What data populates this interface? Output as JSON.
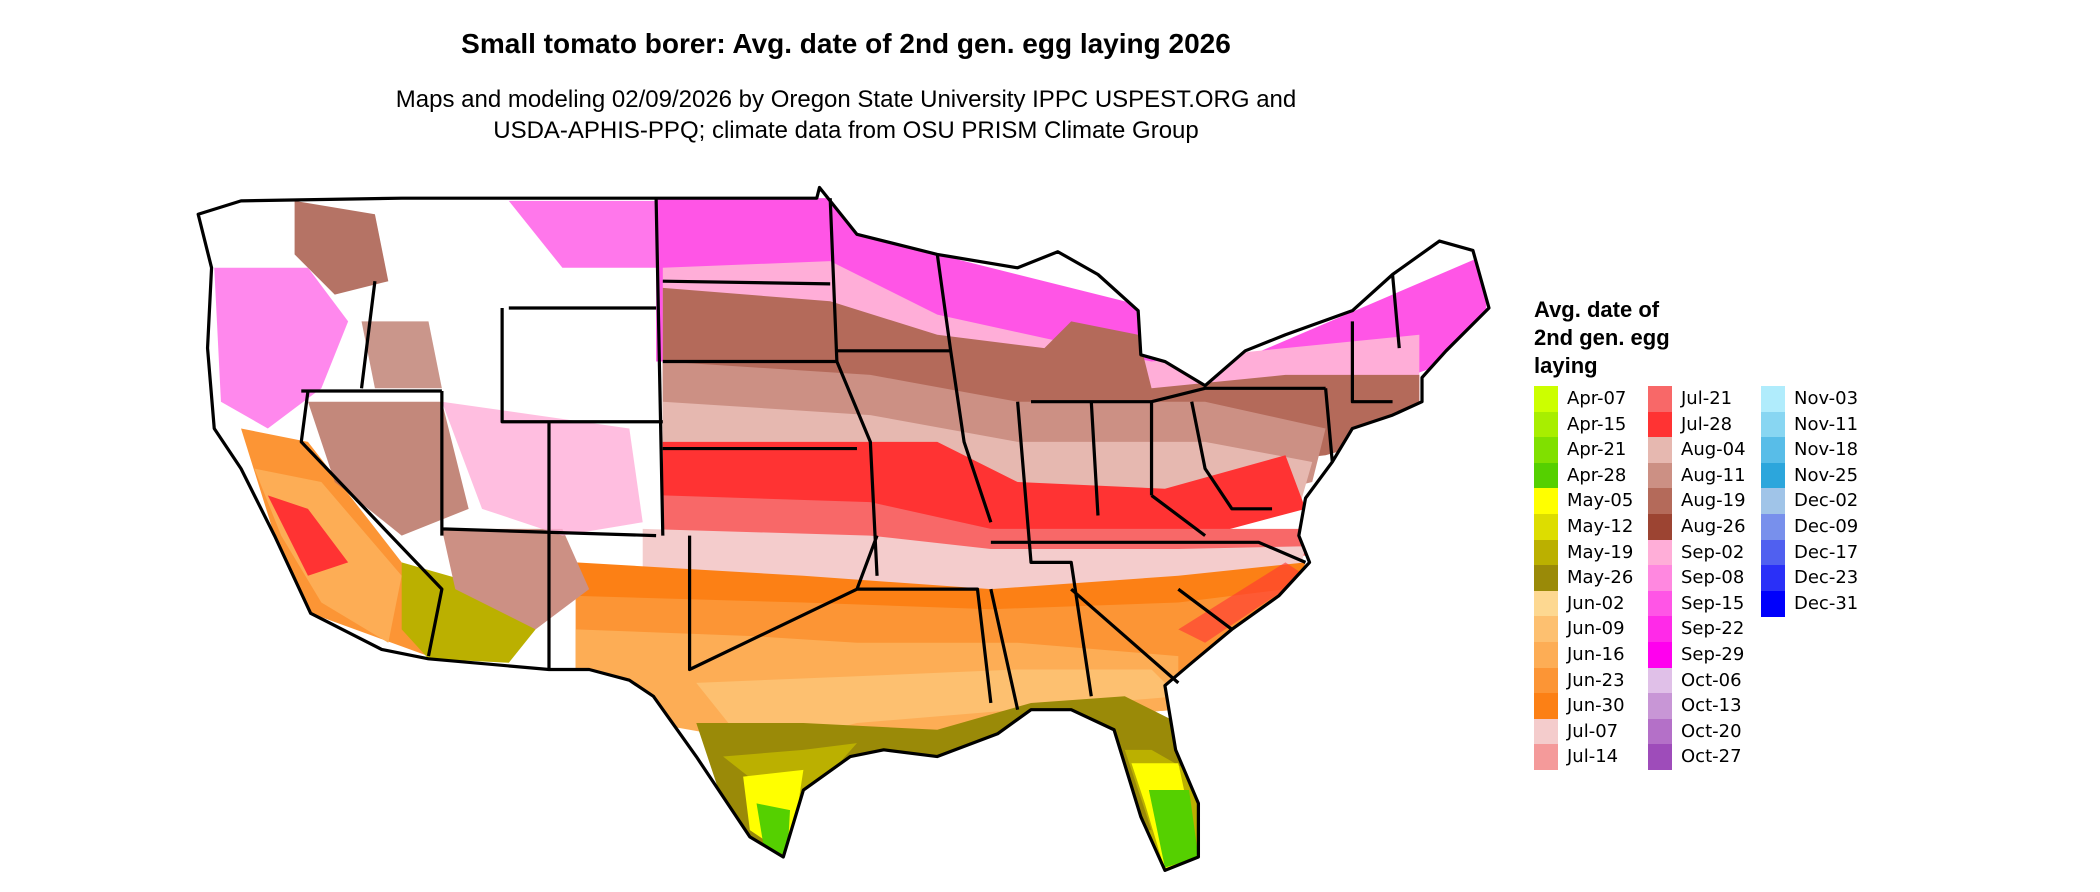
{
  "title": "Small tomato borer: Avg. date of 2nd gen. egg laying 2026",
  "subtitle_line1": "Maps and modeling 02/09/2026 by Oregon State University IPPC USPEST.ORG and",
  "subtitle_line2": "USDA-APHIS-PPQ; climate data from OSU PRISM Climate Group",
  "chart_data": {
    "type": "heatmap",
    "region": "contiguous United States",
    "legend_title": "Avg. date of 2nd gen. egg laying",
    "legend_title_lines": [
      "Avg. date of",
      "2nd gen. egg",
      "laying"
    ],
    "legend_placement": "right",
    "legend": [
      {
        "label": "Apr-07",
        "color": "#ccff00"
      },
      {
        "label": "Apr-15",
        "color": "#a8ee00"
      },
      {
        "label": "Apr-21",
        "color": "#80e000"
      },
      {
        "label": "Apr-28",
        "color": "#55d000"
      },
      {
        "label": "May-05",
        "color": "#ffff00"
      },
      {
        "label": "May-12",
        "color": "#dddd00"
      },
      {
        "label": "May-19",
        "color": "#bbb000"
      },
      {
        "label": "May-26",
        "color": "#9a8a08"
      },
      {
        "label": "Jun-02",
        "color": "#fdd891"
      },
      {
        "label": "Jun-09",
        "color": "#fdc070"
      },
      {
        "label": "Jun-16",
        "color": "#fdad55"
      },
      {
        "label": "Jun-23",
        "color": "#fc9535"
      },
      {
        "label": "Jun-30",
        "color": "#fc8015"
      },
      {
        "label": "Jul-07",
        "color": "#f4cccc"
      },
      {
        "label": "Jul-14",
        "color": "#f49a9a"
      },
      {
        "label": "Jul-21",
        "color": "#f86868"
      },
      {
        "label": "Jul-28",
        "color": "#ff3333"
      },
      {
        "label": "Aug-04",
        "color": "#e6b8b0"
      },
      {
        "label": "Aug-11",
        "color": "#cc9084"
      },
      {
        "label": "Aug-19",
        "color": "#b46a5a"
      },
      {
        "label": "Aug-26",
        "color": "#9c4432"
      },
      {
        "label": "Sep-02",
        "color": "#ffaed8"
      },
      {
        "label": "Sep-08",
        "color": "#ff88e0"
      },
      {
        "label": "Sep-15",
        "color": "#ff55e6"
      },
      {
        "label": "Sep-22",
        "color": "#ff2ae8"
      },
      {
        "label": "Sep-29",
        "color": "#ff00ee"
      },
      {
        "label": "Oct-06",
        "color": "#e0c0e8"
      },
      {
        "label": "Oct-13",
        "color": "#c896d6"
      },
      {
        "label": "Oct-20",
        "color": "#b470c8"
      },
      {
        "label": "Oct-27",
        "color": "#9e4cba"
      },
      {
        "label": "Nov-03",
        "color": "#b0ecfc"
      },
      {
        "label": "Nov-11",
        "color": "#88d6f2"
      },
      {
        "label": "Nov-18",
        "color": "#58bde8"
      },
      {
        "label": "Nov-25",
        "color": "#2ca6dc"
      },
      {
        "label": "Dec-02",
        "color": "#a0c4e8"
      },
      {
        "label": "Dec-09",
        "color": "#7890ec"
      },
      {
        "label": "Dec-17",
        "color": "#5060f0"
      },
      {
        "label": "Dec-23",
        "color": "#2a30f8"
      },
      {
        "label": "Dec-31",
        "color": "#0000fc"
      }
    ]
  }
}
